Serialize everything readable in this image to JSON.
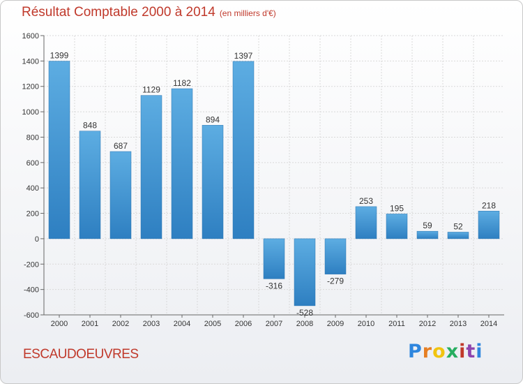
{
  "header": {
    "title": "Résultat Comptable 2000 à 2014",
    "subtitle": "(en milliers d'€)"
  },
  "footer": {
    "city": "ESCAUDOEUVRES",
    "logo": "Proxiti"
  },
  "colors": {
    "bar_light": "#5dade2",
    "bar_dark": "#2e7fc1",
    "title": "#c0392b"
  },
  "chart_data": {
    "type": "bar",
    "title": "Résultat Comptable 2000 à 2014",
    "subtitle": "(en milliers d'€)",
    "categories": [
      "2000",
      "2001",
      "2002",
      "2003",
      "2004",
      "2005",
      "2006",
      "2007",
      "2008",
      "2009",
      "2010",
      "2011",
      "2012",
      "2013",
      "2014"
    ],
    "values": [
      1399,
      848,
      687,
      1129,
      1182,
      894,
      1397,
      -316,
      -528,
      -279,
      253,
      195,
      59,
      52,
      218
    ],
    "ylim": [
      -600,
      1600
    ],
    "yticks": [
      -600,
      -400,
      -200,
      0,
      200,
      400,
      600,
      800,
      1000,
      1200,
      1400,
      1600
    ],
    "grid": true,
    "legend": "none"
  }
}
